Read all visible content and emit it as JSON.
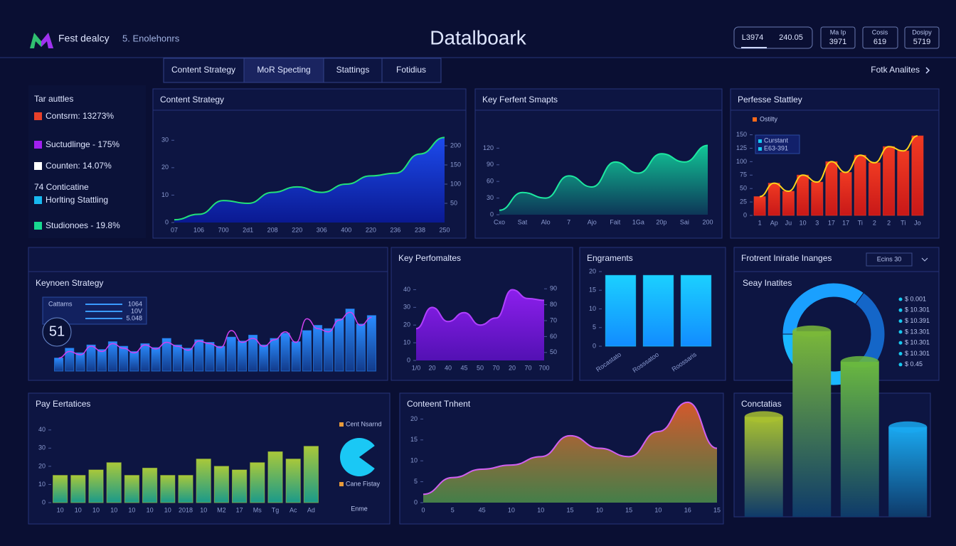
{
  "header": {
    "logo": "Fest dealcy",
    "subtitle": "5. Enolehonrs",
    "title": "Datalboark",
    "stats": [
      "L3974",
      "240.05"
    ],
    "cards": [
      {
        "label": "Ma Ip",
        "value": "3971"
      },
      {
        "label": "Cosis",
        "value": "619"
      },
      {
        "label": "Dosipy",
        "value": "5719"
      }
    ]
  },
  "tabs": [
    "Content Strategy",
    "MoR Specting",
    "Stattings",
    "Fotidius"
  ],
  "tab_link": "Fotk Analites",
  "side": {
    "title": "Tar auttles",
    "items": [
      {
        "text": "Contsrm: 13273%",
        "color": "#e8402a"
      },
      {
        "text": "Suctudlinge - 175%",
        "color": "#a020f0"
      },
      {
        "text": "Counten: 14.07%",
        "color": "#ffffff"
      },
      {
        "text": "74 Conticatine"
      },
      {
        "text": "Horlting Stattling",
        "color": "#18b8f0"
      },
      {
        "text": "Studionoes - 19.8%",
        "color": "#18d890"
      }
    ]
  },
  "chart_data": [
    {
      "type": "area",
      "title": "Content Strategy",
      "categories": [
        "07",
        "106",
        "700",
        "2d1",
        "208",
        "220",
        "306",
        "400",
        "220",
        "236",
        "238",
        "250"
      ],
      "values": [
        1,
        3,
        8,
        7,
        11,
        13,
        11,
        14,
        17,
        18,
        25,
        31
      ],
      "ylim": [
        0,
        35
      ],
      "yticks": [
        0,
        10,
        20,
        30
      ],
      "y2lim": [
        0,
        250
      ],
      "y2ticks": [
        50,
        100,
        150,
        200
      ],
      "color": "#1e50ff",
      "color2": "#0a1a9a",
      "line": "#22e07a"
    },
    {
      "type": "area",
      "title": "Key Ferfent Smapts",
      "categories": [
        "Cxo",
        "Sat",
        "Alo",
        "7",
        "Ajo",
        "Fait",
        "1Ga",
        "20p",
        "Sai",
        "200"
      ],
      "values": [
        8,
        40,
        30,
        70,
        50,
        95,
        75,
        110,
        95,
        125
      ],
      "ylim": [
        0,
        150
      ],
      "yticks": [
        0,
        30,
        60,
        90,
        120
      ],
      "color": "#12d9a0",
      "color2": "#0d3a5a",
      "line": "#1de8a0"
    },
    {
      "type": "bar",
      "title": "Perfesse Stattley",
      "categories": [
        "1",
        "Ap",
        "Ju",
        "10",
        "3",
        "17",
        "17",
        "Ti",
        "2",
        "2",
        "Ti",
        "Jo"
      ],
      "values": [
        35,
        60,
        45,
        75,
        62,
        100,
        80,
        112,
        98,
        128,
        120,
        148
      ],
      "ylim": [
        0,
        160
      ],
      "yticks": [
        0,
        25,
        50,
        75,
        100,
        125,
        150
      ],
      "color": "#f03a22",
      "color2": "#c81818",
      "line": "#ffd21a",
      "legend": "Ostilty",
      "legend_color": "#ff6a1a",
      "note": [
        "Curstant",
        "E63-391"
      ]
    },
    {
      "type": "bar",
      "title": "Keynoen Strategy",
      "values": [
        20,
        35,
        28,
        40,
        33,
        45,
        38,
        30,
        42,
        36,
        50,
        40,
        35,
        48,
        44,
        38,
        52,
        46,
        55,
        40,
        50,
        58,
        45,
        62,
        70,
        65,
        80,
        95,
        72,
        85
      ],
      "line_values": [
        20,
        30,
        25,
        38,
        30,
        42,
        35,
        28,
        40,
        34,
        44,
        38,
        32,
        46,
        42,
        36,
        62,
        44,
        50,
        38,
        48,
        60,
        44,
        80,
        65,
        60,
        78,
        90,
        70,
        82
      ],
      "ylim": [
        0,
        100
      ],
      "color": "#2a8cff",
      "color2": "#123a8a",
      "line": "#d040f0",
      "badge": 51,
      "legend": "Cattams",
      "legend_values": [
        "1064",
        "10V",
        "5.048"
      ]
    },
    {
      "type": "area",
      "title": "Key Perfomaltes",
      "categories": [
        "1/0",
        "20",
        "40",
        "45",
        "50",
        "70",
        "20",
        "70",
        "700"
      ],
      "values": [
        18,
        30,
        22,
        27,
        20,
        24,
        40,
        35,
        34
      ],
      "ylim": [
        0,
        45
      ],
      "yticks": [
        0,
        10,
        20,
        30,
        40
      ],
      "y2lim": [
        45,
        95
      ],
      "y2ticks": [
        50,
        60,
        70,
        80,
        90
      ],
      "color": "#9a20ff",
      "color2": "#5a10c0",
      "line": "#b040ff"
    },
    {
      "type": "bar",
      "title": "Engraments",
      "categories": [
        "Rocastato",
        "Rosssatoo",
        "Roossaris"
      ],
      "values": [
        19,
        19,
        19
      ],
      "ylim": [
        0,
        20
      ],
      "yticks": [
        0,
        5,
        10,
        15,
        20
      ],
      "xlabel_rotation": -35,
      "color": "#1bd0ff",
      "color2": "#128cff"
    },
    {
      "type": "donut",
      "title": "Frotrent Iniratie Inanges",
      "subtitle": "Seay Inatites",
      "dropdown": "Ecins 30",
      "values": [
        35,
        30,
        35
      ],
      "colors": [
        "#1aa0ff",
        "#1466c8",
        "#1ab8ff"
      ],
      "list": [
        "$ 0.001",
        "$ 10.301",
        "$ 10.391",
        "$ 13.301",
        "$ 10.301",
        "$ 10.301",
        "$ 0.45"
      ]
    },
    {
      "type": "bar",
      "title": "Pay Eertatices",
      "categories": [
        "10",
        "10",
        "10",
        "10",
        "10",
        "10",
        "10",
        "2018",
        "10",
        "M2",
        "17",
        "Ms",
        "Tg",
        "Ac",
        "Ad"
      ],
      "values": [
        15,
        15,
        18,
        22,
        15,
        19,
        15,
        15,
        24,
        20,
        18,
        22,
        28,
        24,
        31
      ],
      "ylim": [
        0,
        45
      ],
      "yticks": [
        0,
        10,
        20,
        30,
        40
      ],
      "color": "#a8c83a",
      "color2": "#1a9a8a"
    },
    {
      "type": "pie",
      "categories": [
        "Cent Nsarnd",
        "Cane Fistay"
      ],
      "caption": "Enme",
      "values": [
        80,
        20
      ],
      "colors": [
        "#1ac8f5",
        "#0d1542"
      ],
      "legend_color": "#e89a3a"
    },
    {
      "type": "area",
      "title": "Conteent Tnhent",
      "categories": [
        "0",
        "5",
        "45",
        "10",
        "10",
        "15",
        "10",
        "15",
        "10",
        "16",
        "15"
      ],
      "values": [
        2,
        6,
        8,
        9,
        11,
        16,
        13,
        11,
        17,
        24,
        13
      ],
      "ylim": [
        0,
        25
      ],
      "yticks": [
        0,
        5,
        10,
        15,
        20
      ],
      "color": "#e8602a",
      "color2": "#4a8a4a",
      "line": "#d060f0"
    },
    {
      "type": "bar3d",
      "title": "Conctatias",
      "values": [
        49,
        91,
        76,
        44
      ],
      "ylim": [
        0,
        100
      ],
      "colors": [
        "#a8c030",
        "#7ab83a",
        "#6ab840",
        "#1aa8f0"
      ]
    }
  ]
}
